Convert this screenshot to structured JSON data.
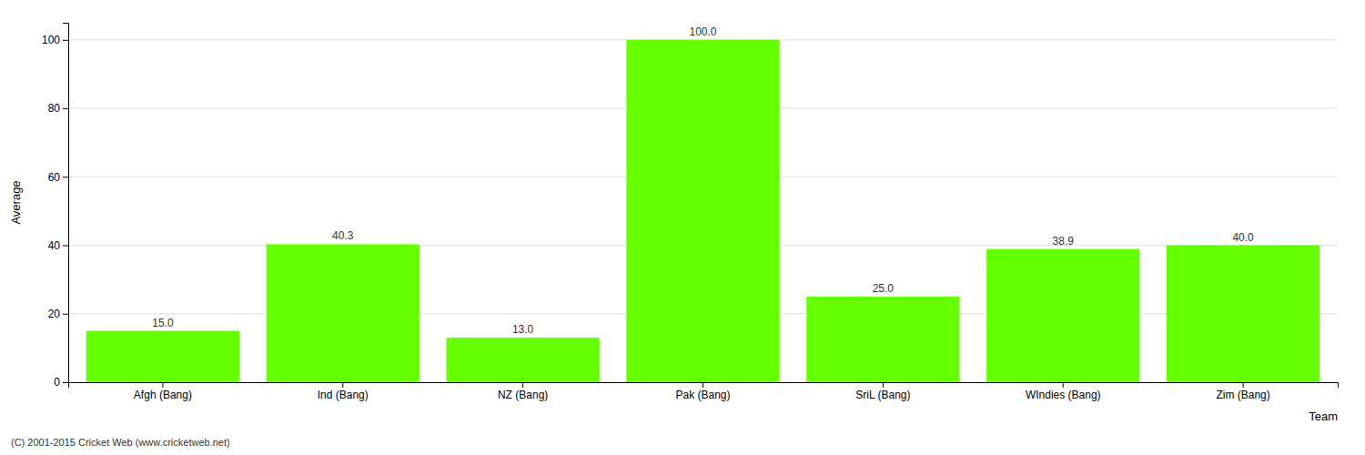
{
  "chart_data": {
    "type": "bar",
    "categories": [
      "Afgh (Bang)",
      "Ind (Bang)",
      "NZ (Bang)",
      "Pak (Bang)",
      "SriL (Bang)",
      "WIndies (Bang)",
      "Zim (Bang)"
    ],
    "values": [
      15.0,
      40.3,
      13.0,
      100.0,
      25.0,
      38.9,
      40.0
    ],
    "value_labels": [
      "15.0",
      "40.3",
      "13.0",
      "100.0",
      "25.0",
      "38.9",
      "40.0"
    ],
    "data_labels": true,
    "color": "#66ff00",
    "xlabel": "Team",
    "ylabel": "Average",
    "ylim": [
      0,
      105
    ],
    "yticks": [
      0,
      20,
      40,
      60,
      80,
      100
    ],
    "grid": true,
    "annotations": [
      "(C) 2001-2015 Cricket Web (www.cricketweb.net)"
    ]
  }
}
